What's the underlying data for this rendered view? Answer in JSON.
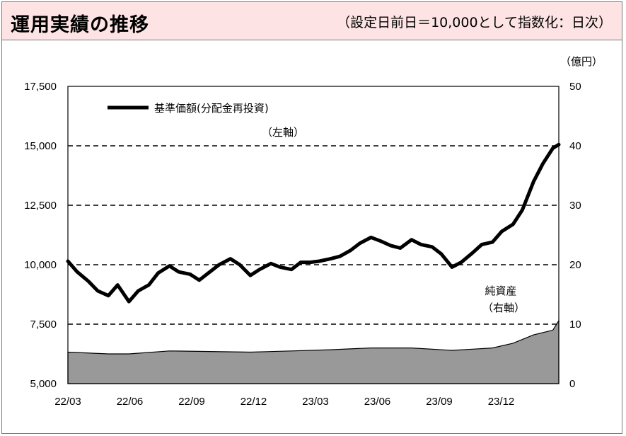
{
  "header": {
    "title": "運用実績の推移",
    "note": "（設定日前日＝10,000として指数化：日次）"
  },
  "chart_data": {
    "type": "line",
    "x_ticks": [
      "22/03",
      "22/06",
      "22/09",
      "22/12",
      "23/03",
      "23/06",
      "23/09",
      "23/12"
    ],
    "left_axis": {
      "ticks": [
        "5,000",
        "7,500",
        "10,000",
        "12,500",
        "15,000",
        "17,500"
      ],
      "ylim": [
        5000,
        17500
      ]
    },
    "right_axis": {
      "unit_label": "（億円）",
      "ticks": [
        "0",
        "10",
        "20",
        "30",
        "40",
        "50"
      ],
      "ylim": [
        0,
        50
      ]
    },
    "grid": "dashed horizontal",
    "colors": {
      "nav_line": "#000000",
      "assets_fill": "#999999",
      "assets_stroke": "#000000",
      "grid": "#000000"
    },
    "series": [
      {
        "name": "基準価額(分配金再投資)",
        "axis_label": "（左軸）",
        "axis": "left",
        "kind": "line",
        "x": [
          "2022-03-01",
          "2022-03-15",
          "2022-04-01",
          "2022-04-15",
          "2022-05-01",
          "2022-05-15",
          "2022-06-01",
          "2022-06-15",
          "2022-07-01",
          "2022-07-15",
          "2022-08-01",
          "2022-08-15",
          "2022-09-01",
          "2022-09-15",
          "2022-10-01",
          "2022-10-15",
          "2022-11-01",
          "2022-11-15",
          "2022-12-01",
          "2022-12-15",
          "2023-01-01",
          "2023-01-15",
          "2023-02-01",
          "2023-02-15",
          "2023-03-01",
          "2023-03-15",
          "2023-04-01",
          "2023-04-15",
          "2023-05-01",
          "2023-05-15",
          "2023-06-01",
          "2023-06-15",
          "2023-07-01",
          "2023-07-15",
          "2023-08-01",
          "2023-08-15",
          "2023-09-01",
          "2023-09-15",
          "2023-10-01",
          "2023-10-15",
          "2023-11-01",
          "2023-11-15",
          "2023-12-01",
          "2023-12-15",
          "2024-01-01",
          "2024-01-15",
          "2024-02-01",
          "2024-02-15",
          "2024-03-01",
          "2024-03-10"
        ],
        "values": [
          10150,
          9700,
          9300,
          8900,
          8700,
          9150,
          8450,
          8900,
          9150,
          9650,
          9950,
          9700,
          9600,
          9350,
          9700,
          10000,
          10250,
          10000,
          9550,
          9800,
          10050,
          9900,
          9800,
          10100,
          10100,
          10150,
          10250,
          10350,
          10600,
          10900,
          11150,
          11000,
          10800,
          10700,
          11050,
          10850,
          10750,
          10450,
          9900,
          10100,
          10500,
          10850,
          10950,
          11400,
          11700,
          12300,
          13500,
          14250,
          14900,
          15050
        ]
      },
      {
        "name": "純資産",
        "axis_label": "（右軸）",
        "axis": "right",
        "kind": "area",
        "x": [
          "2022-03-01",
          "2022-05-01",
          "2022-06-01",
          "2022-08-01",
          "2022-10-01",
          "2022-12-01",
          "2023-02-01",
          "2023-04-01",
          "2023-06-01",
          "2023-08-01",
          "2023-10-01",
          "2023-11-01",
          "2023-12-01",
          "2024-01-01",
          "2024-02-01",
          "2024-03-01",
          "2024-03-10"
        ],
        "values": [
          5.3,
          5.0,
          5.0,
          5.5,
          5.4,
          5.3,
          5.5,
          5.7,
          6.0,
          6.0,
          5.6,
          5.8,
          6.0,
          6.8,
          8.2,
          9.0,
          10.6
        ]
      }
    ]
  }
}
